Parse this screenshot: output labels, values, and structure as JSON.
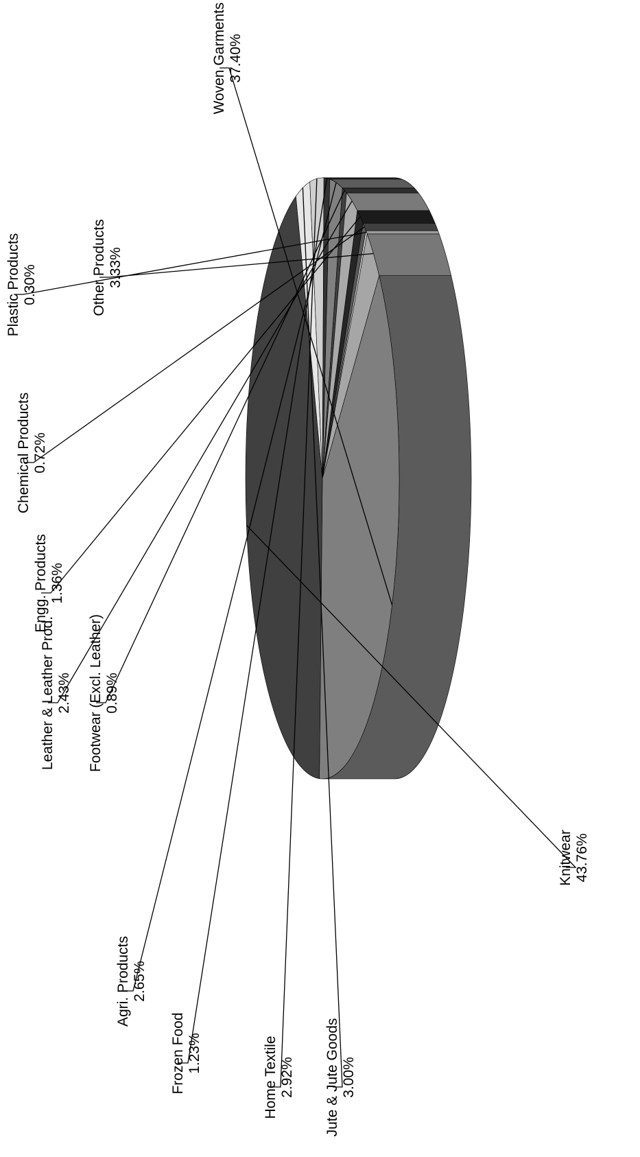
{
  "chart_data": {
    "type": "pie",
    "style": "3d-rotated",
    "slices": [
      {
        "label": "Woven Garments",
        "value": 37.4,
        "display": "37.40%",
        "color": "#7f7f7f"
      },
      {
        "label": "Knitwear",
        "value": 43.76,
        "display": "43.76%",
        "color": "#404040"
      },
      {
        "label": "Jute & Jute Goods",
        "value": 3.0,
        "display": "3.00%",
        "color": "#e6e6e6"
      },
      {
        "label": "Home Textile",
        "value": 2.92,
        "display": "2.92%",
        "color": "#cfcfcf"
      },
      {
        "label": "Frozen Food",
        "value": 1.23,
        "display": "1.23%",
        "color": "#333333"
      },
      {
        "label": "Agri. Products",
        "value": 2.65,
        "display": "2.65%",
        "color": "#808080"
      },
      {
        "label": "Footwear (Excl. Leather)",
        "value": 0.89,
        "display": "0.89%",
        "color": "#404040"
      },
      {
        "label": "Leather & Leather Prod.",
        "value": 2.43,
        "display": "2.43%",
        "color": "#a9a9a9"
      },
      {
        "label": "Engg. Products",
        "value": 1.36,
        "display": "1.36%",
        "color": "#262626"
      },
      {
        "label": "Chemical Products",
        "value": 0.72,
        "display": "0.72%",
        "color": "#595959"
      },
      {
        "label": "Plastic Products",
        "value": 0.3,
        "display": "0.30%",
        "color": "#d9d9d9"
      },
      {
        "label": "Other Products",
        "value": 3.33,
        "display": "3.33%",
        "color": "#a6a6a6"
      }
    ]
  }
}
